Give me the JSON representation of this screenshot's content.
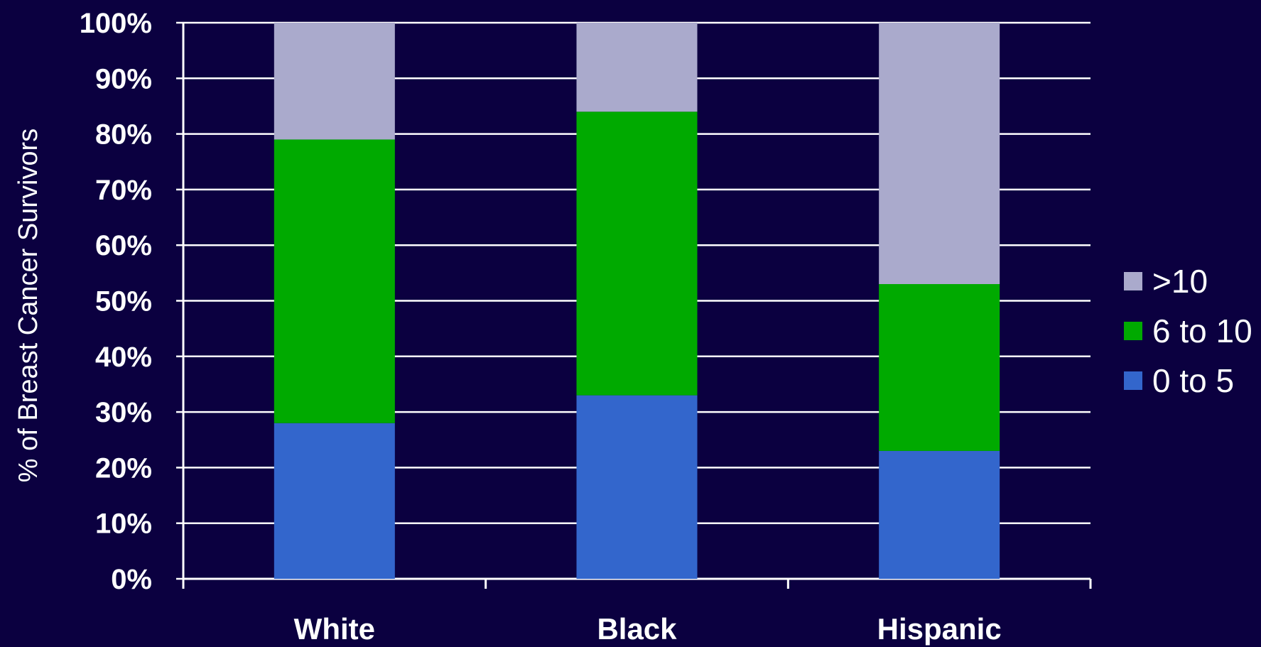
{
  "chart_data": {
    "type": "bar",
    "stacked": true,
    "categories": [
      "White",
      "Black",
      "Hispanic"
    ],
    "series": [
      {
        "name": "0 to 5",
        "color": "#3366cc",
        "values": [
          28,
          33,
          23
        ]
      },
      {
        "name": "6 to 10",
        "color": "#00aa00",
        "values": [
          51,
          51,
          30
        ]
      },
      {
        "name": ">10",
        "color": "#aaaacc",
        "values": [
          21,
          16,
          47
        ]
      }
    ],
    "ylabel": "% of Breast Cancer Survivors",
    "xlabel": "",
    "ylim": [
      0,
      100
    ],
    "yticks": [
      "0%",
      "10%",
      "20%",
      "30%",
      "40%",
      "50%",
      "60%",
      "70%",
      "80%",
      "90%",
      "100%"
    ],
    "grid": true,
    "legend_position": "right",
    "background_color": "#0b0040",
    "grid_color": "#ffffff"
  }
}
